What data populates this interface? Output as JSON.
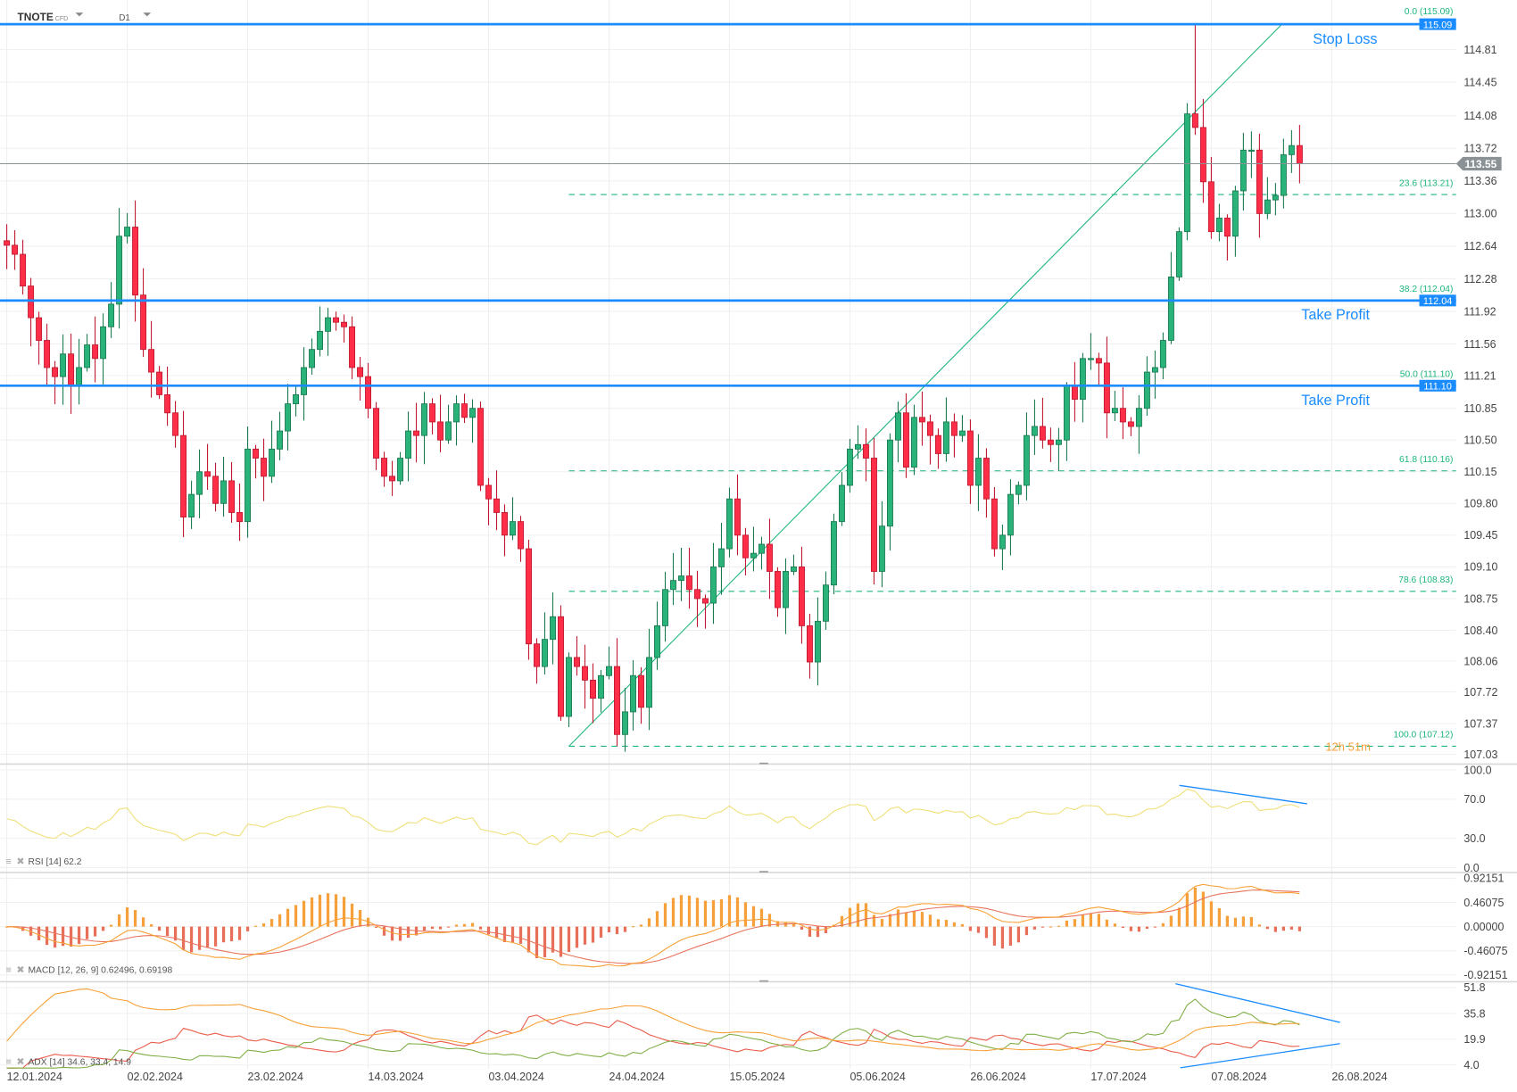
{
  "header": {
    "symbol": "TNOTE",
    "symbol_type": "CFD",
    "timeframe": "D1"
  },
  "colors": {
    "up": "#2ab27b",
    "up_border": "#1a7a4f",
    "down": "#ff2e48",
    "down_border": "#c0182e",
    "level_line": "#1a8cff",
    "fib": "#1db67b",
    "rsi": "#efdf78",
    "macd": "#f7a035",
    "signal": "#e8735a",
    "hist_pos": "#f5a03a",
    "hist_neg": "#e8705a",
    "adx": "#f7a035",
    "plus_di": "#7fae45",
    "minus_di": "#ea5a48",
    "current_price": "#8a9296"
  },
  "price_axis": [
    "114.81",
    "114.45",
    "114.08",
    "113.72",
    "113.36",
    "113.00",
    "112.64",
    "112.28",
    "111.92",
    "111.56",
    "111.21",
    "110.85",
    "110.50",
    "110.15",
    "109.80",
    "109.45",
    "109.10",
    "108.75",
    "108.40",
    "108.06",
    "107.72",
    "107.37",
    "107.03"
  ],
  "current_price": {
    "value": 113.55,
    "label": "113.55"
  },
  "levels": [
    {
      "value": 115.09,
      "label": "115.09",
      "annotation": "Stop Loss"
    },
    {
      "value": 112.04,
      "label": "112.04",
      "annotation": "Take Profit"
    },
    {
      "value": 111.1,
      "label": "111.10",
      "annotation": "Take Profit"
    }
  ],
  "fibonacci": {
    "from_price": 107.12,
    "to_price": 115.09,
    "levels": [
      {
        "value": 115.09,
        "label": "0.0 (115.09)"
      },
      {
        "value": 113.21,
        "label": "23.6 (113.21)"
      },
      {
        "value": 112.04,
        "label": "38.2 (112.04)"
      },
      {
        "value": 111.1,
        "label": "50.0 (111.10)"
      },
      {
        "value": 110.16,
        "label": "61.8 (110.16)"
      },
      {
        "value": 108.83,
        "label": "78.6 (108.83)"
      },
      {
        "value": 107.12,
        "label": "100.0 (107.12)"
      }
    ]
  },
  "countdown": "12h 51m",
  "dates": [
    "12.01.2024",
    "02.02.2024",
    "23.02.2024",
    "14.03.2024",
    "03.04.2024",
    "24.04.2024",
    "15.05.2024",
    "05.06.2024",
    "26.06.2024",
    "17.07.2024",
    "07.08.2024",
    "26.08.2024"
  ],
  "chart_data": {
    "type": "candlestick",
    "x_start": "12.01.2024",
    "closes": [
      112.65,
      112.55,
      112.2,
      111.85,
      111.6,
      111.3,
      111.2,
      111.45,
      111.1,
      111.3,
      111.55,
      111.4,
      111.75,
      112.0,
      112.75,
      112.85,
      112.1,
      111.5,
      111.25,
      111.0,
      110.8,
      110.55,
      109.65,
      109.9,
      110.15,
      110.1,
      109.8,
      110.05,
      109.7,
      109.6,
      110.4,
      110.3,
      110.1,
      110.4,
      110.6,
      110.9,
      111.0,
      111.3,
      111.5,
      111.7,
      111.85,
      111.8,
      111.75,
      111.3,
      111.2,
      110.85,
      110.3,
      110.1,
      110.05,
      110.3,
      110.6,
      110.55,
      110.9,
      110.7,
      110.5,
      110.7,
      110.9,
      110.75,
      110.85,
      110.0,
      109.85,
      109.7,
      109.45,
      109.6,
      109.3,
      108.25,
      108.0,
      108.3,
      108.55,
      107.45,
      108.1,
      108.0,
      107.85,
      107.65,
      107.9,
      108.0,
      107.25,
      107.5,
      107.9,
      107.55,
      108.1,
      108.45,
      108.85,
      108.95,
      109.0,
      108.85,
      108.75,
      108.7,
      109.1,
      109.3,
      109.85,
      109.45,
      109.2,
      109.25,
      109.35,
      109.05,
      108.65,
      109.05,
      109.1,
      108.45,
      108.05,
      108.5,
      108.9,
      109.6,
      110.0,
      110.4,
      110.45,
      110.3,
      109.05,
      109.55,
      110.5,
      110.8,
      110.2,
      110.75,
      110.7,
      110.55,
      110.35,
      110.7,
      110.55,
      110.6,
      110.0,
      110.3,
      109.85,
      109.3,
      109.45,
      109.9,
      110.0,
      110.55,
      110.65,
      110.5,
      110.45,
      110.5,
      111.1,
      110.95,
      111.4,
      111.4,
      111.35,
      110.8,
      110.85,
      110.7,
      110.65,
      110.85,
      111.25,
      111.3,
      111.6,
      112.3,
      112.8,
      114.1,
      113.95,
      113.35,
      112.8,
      112.95,
      112.75,
      113.25,
      113.7,
      113.7,
      113.0,
      113.15,
      113.2,
      113.65,
      113.75,
      113.55
    ],
    "extremes": [
      {
        "index": 148,
        "high": 115.09
      },
      {
        "index": 76,
        "low": 107.12
      }
    ],
    "ylim": [
      107.03,
      115.09
    ]
  },
  "rsi": {
    "label": "RSI",
    "params": "[14]",
    "value": "62.2",
    "axis": [
      "100.0",
      "70.0",
      "30.0",
      "0.0"
    ]
  },
  "macd": {
    "label": "MACD",
    "params": "[12, 26, 9]",
    "values": "0.62496,  0.69198",
    "axis": [
      "0.92151",
      "0.46075",
      "0.00000",
      "-0.46075",
      "-0.92151"
    ]
  },
  "adx": {
    "label": "ADX",
    "params": "[14]",
    "values": "34.6,  33.4,  14.9",
    "axis": [
      "51.8",
      "35.8",
      "19.9",
      "4.0"
    ]
  }
}
